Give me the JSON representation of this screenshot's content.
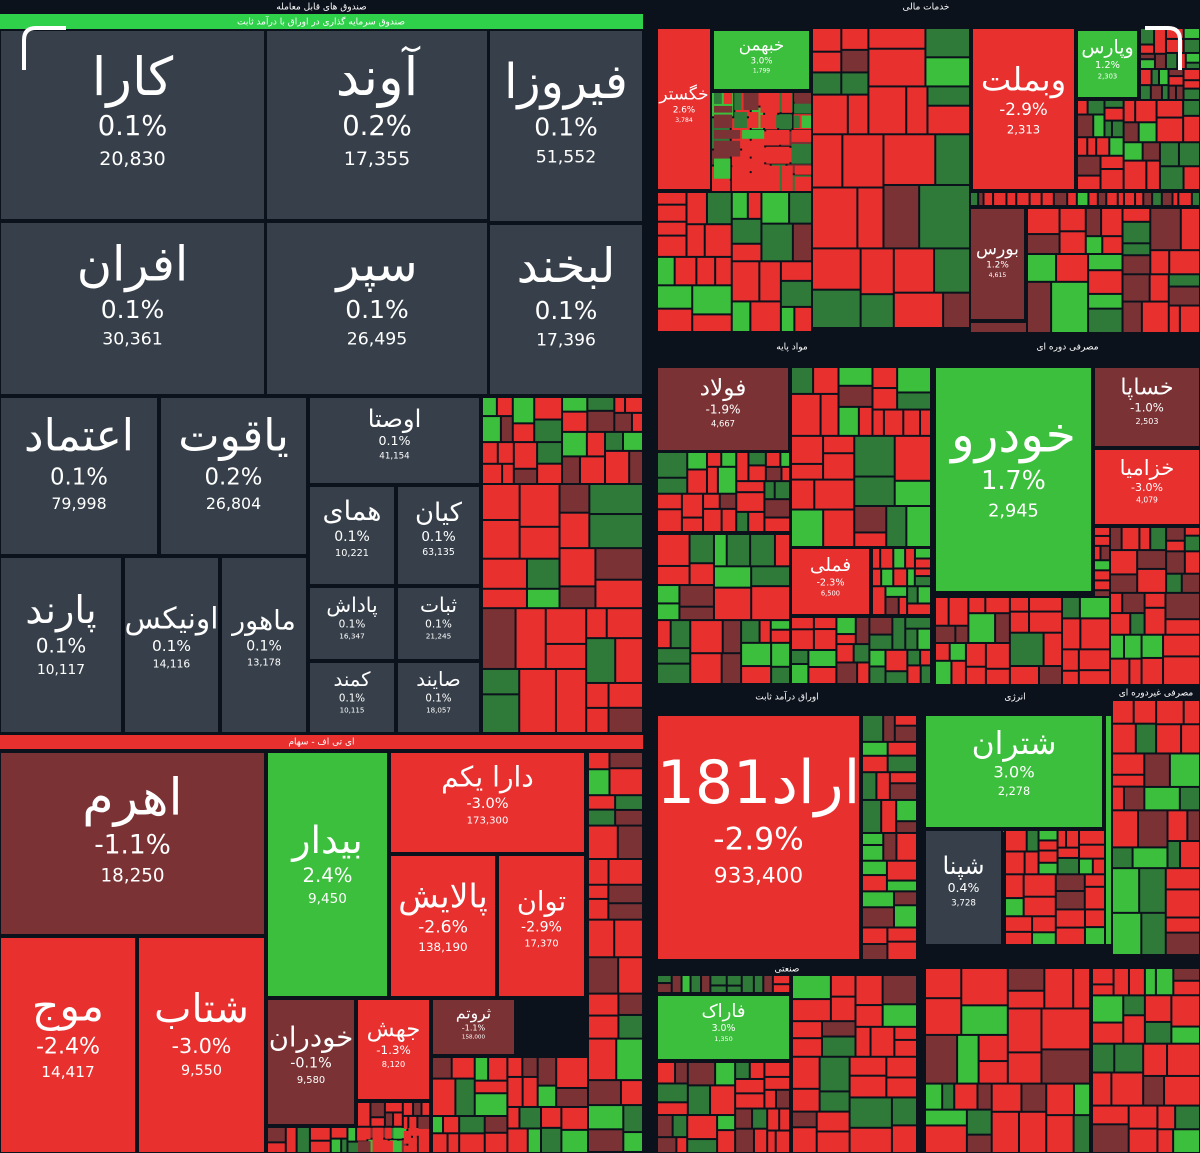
{
  "sections": [
    {
      "title": "صندوق های قابل معامله",
      "subtitle": "صندوق سرمایه گذاری در اوراق با درآمد ثابت",
      "tiles": [
        {
          "name": "کارا",
          "change": "0.1%",
          "volume": "20,830"
        },
        {
          "name": "آوند",
          "change": "0.2%",
          "volume": "17,355"
        },
        {
          "name": "فیروزا",
          "change": "0.1%",
          "volume": "51,552"
        },
        {
          "name": "افران",
          "change": "0.1%",
          "volume": "30,361"
        },
        {
          "name": "سپر",
          "change": "0.1%",
          "volume": "26,495"
        },
        {
          "name": "لبخند",
          "change": "0.1%",
          "volume": "17,396"
        },
        {
          "name": "اعتماد",
          "change": "0.1%",
          "volume": "79,998"
        },
        {
          "name": "یاقوت",
          "change": "0.2%",
          "volume": "26,804"
        },
        {
          "name": "اوصتا",
          "change": "0.1%",
          "volume": "41,154"
        },
        {
          "name": "همای",
          "change": "0.1%",
          "volume": "10,221"
        },
        {
          "name": "کیان",
          "change": "0.1%",
          "volume": "63,135"
        },
        {
          "name": "پارند",
          "change": "0.1%",
          "volume": "10,117"
        },
        {
          "name": "اونیکس",
          "change": "0.1%",
          "volume": "14,116"
        },
        {
          "name": "ماهور",
          "change": "0.1%",
          "volume": "13,178"
        },
        {
          "name": "پاداش",
          "change": "0.1%",
          "volume": "16,347"
        },
        {
          "name": "ثبات",
          "change": "0.1%",
          "volume": "21,245"
        },
        {
          "name": "کمند",
          "change": "0.1%",
          "volume": "10,115"
        },
        {
          "name": "صایند",
          "change": "0.1%",
          "volume": "18,057"
        }
      ]
    },
    {
      "title": "ای تی اف - سهام",
      "tiles": [
        {
          "name": "اهرم",
          "change": "-1.1%",
          "volume": "18,250"
        },
        {
          "name": "بیدار",
          "change": "2.4%",
          "volume": "9,450"
        },
        {
          "name": "دارا یکم",
          "change": "-3.0%",
          "volume": "173,300"
        },
        {
          "name": "پالایش",
          "change": "-2.6%",
          "volume": "138,190"
        },
        {
          "name": "توان",
          "change": "-2.9%",
          "volume": "17,370"
        },
        {
          "name": "موج",
          "change": "-2.4%",
          "volume": "14,417"
        },
        {
          "name": "شتاب",
          "change": "-3.0%",
          "volume": "9,550"
        },
        {
          "name": "خودران",
          "change": "-0.1%",
          "volume": "9,580"
        },
        {
          "name": "جهش",
          "change": "-1.3%",
          "volume": "8,120"
        },
        {
          "name": "ثروتم",
          "change": "-1.1%",
          "volume": "158,000"
        }
      ]
    },
    {
      "title": "خدمات مالی",
      "tiles": [
        {
          "name": "وبملت",
          "change": "-2.9%",
          "volume": "2,313"
        },
        {
          "name": "خگستر",
          "change": "2.6%",
          "volume": "3,784"
        },
        {
          "name": "خبهمن",
          "change": "3.0%",
          "volume": "1,799"
        },
        {
          "name": "وپارس",
          "change": "1.2%",
          "volume": "2,303"
        },
        {
          "name": "بورس",
          "change": "1.2%",
          "volume": "4,615"
        }
      ]
    },
    {
      "title": "مواد پایه",
      "tiles": [
        {
          "name": "فولاد",
          "change": "-1.9%",
          "volume": "4,667"
        },
        {
          "name": "فملی",
          "change": "-2.3%",
          "volume": "6,500"
        }
      ]
    },
    {
      "title": "مصرفی دوره ای",
      "tiles": [
        {
          "name": "خودرو",
          "change": "1.7%",
          "volume": "2,945"
        },
        {
          "name": "خساپا",
          "change": "-1.0%",
          "volume": "2,503"
        },
        {
          "name": "خزامیا",
          "change": "-3.0%",
          "volume": "4,079"
        }
      ]
    },
    {
      "title": "اوراق درآمد ثابت",
      "tiles": [
        {
          "name": "اراد181",
          "change": "-2.9%",
          "volume": "933,400"
        }
      ]
    },
    {
      "title": "انرژی",
      "tiles": [
        {
          "name": "شتران",
          "change": "3.0%",
          "volume": "2,278"
        },
        {
          "name": "شپنا",
          "change": "0.4%",
          "volume": "3,728"
        }
      ]
    },
    {
      "title": "صنعتی",
      "tiles": [
        {
          "name": "فاراک",
          "change": "3.0%",
          "volume": "1,350"
        }
      ]
    },
    {
      "title": "مصرفی غیردوره ای",
      "tiles": []
    }
  ]
}
